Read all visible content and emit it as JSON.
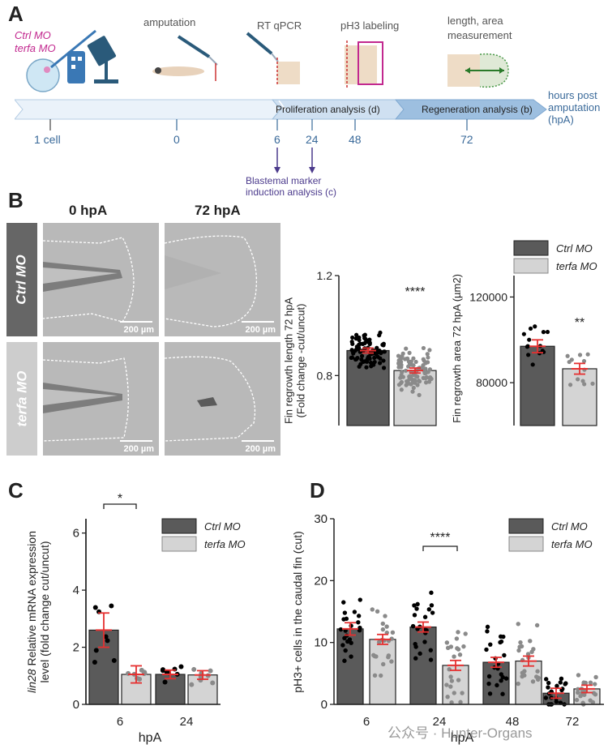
{
  "panel_labels": {
    "a": "A",
    "b": "B",
    "c": "C",
    "d": "D"
  },
  "timeline": {
    "top_labels": [
      "amputation",
      "RT qPCR",
      "pH3 labeling",
      "length, area",
      "measurement"
    ],
    "mo_labels": [
      "Ctrl MO",
      "terfa MO"
    ],
    "bar_text": {
      "prolif": "Proliferation  analysis (d)",
      "regen": "Regeneration analysis (b)"
    },
    "axis_title": [
      "hours post",
      "amputation",
      "(hpA)"
    ],
    "ticks": [
      "1 cell",
      "0",
      "6",
      "24",
      "48",
      "72"
    ],
    "blastemal": [
      "Blastemal marker",
      "induction analysis (c)"
    ],
    "colors": {
      "bar": "#cfe2f3",
      "bar_dark": "#7fa8d1",
      "text": "#3a6a9a",
      "arrow": "#4b3a8c"
    }
  },
  "images": {
    "col_labels": [
      "0 hpA",
      "72 hpA"
    ],
    "row_labels": [
      "Ctrl MO",
      "terfa MO"
    ],
    "scale_bar": "200 µm"
  },
  "legend": {
    "ctrl": "Ctrl MO",
    "terfa": "terfa MO"
  },
  "colors": {
    "ctrl": "#5a5a5a",
    "terfa": "#d4d4d4",
    "dot_ctrl": "#000000",
    "dot_terfa": "#8a8a8a",
    "mean": "#e53030"
  },
  "chart_data": [
    {
      "id": "fin_length",
      "type": "bar",
      "categories": [
        "Ctrl MO",
        "terfa MO"
      ],
      "values": [
        0.9,
        0.82
      ],
      "sem": [
        0.01,
        0.01
      ],
      "ylabel": [
        "Fin regrowth length 72 hpA",
        "(Fold change -cut/uncut)"
      ],
      "yticks": [
        "0.8",
        "1.2"
      ],
      "ytick_values": [
        0.8,
        1.2
      ],
      "ylim": [
        0.6,
        1.2
      ],
      "significance": "****"
    },
    {
      "id": "fin_area",
      "type": "bar",
      "categories": [
        "Ctrl MO",
        "terfa MO"
      ],
      "values": [
        97000,
        86500
      ],
      "sem": [
        3000,
        2500
      ],
      "ylabel": [
        "Fin regrowth area 72 hpA (µm2)"
      ],
      "yticks": [
        "80000",
        "120000"
      ],
      "ytick_values": [
        80000,
        120000
      ],
      "ylim": [
        60000,
        130000
      ],
      "significance": "**"
    },
    {
      "id": "lin28",
      "type": "bar",
      "categories": [
        "6",
        "24"
      ],
      "series": [
        {
          "name": "Ctrl MO",
          "values": [
            2.6,
            1.05
          ],
          "sem": [
            0.6,
            0.15
          ]
        },
        {
          "name": "terfa MO",
          "values": [
            1.05,
            1.03
          ],
          "sem": [
            0.3,
            0.15
          ]
        }
      ],
      "ylabel": [
        "lin28 Relative mRNA expression",
        "level (fold change cut/uncut)"
      ],
      "xlabel": "hpA",
      "yticks": [
        "0",
        "2",
        "4",
        "6"
      ],
      "ytick_values": [
        0,
        2,
        4,
        6
      ],
      "ylim": [
        0,
        6.5
      ],
      "significance": "*"
    },
    {
      "id": "ph3",
      "type": "bar",
      "categories": [
        "6",
        "24",
        "48",
        "72"
      ],
      "series": [
        {
          "name": "Ctrl MO",
          "values": [
            12.2,
            12.5,
            6.8,
            1.8
          ],
          "sem": [
            1.0,
            0.8,
            0.8,
            0.8
          ]
        },
        {
          "name": "terfa MO",
          "values": [
            10.5,
            6.3,
            7.0,
            2.5
          ],
          "sem": [
            0.8,
            0.8,
            0.8,
            0.6
          ]
        }
      ],
      "ylabel": [
        "pH3+ cells in the caudal fin (cut)"
      ],
      "xlabel": "hpA",
      "yticks": [
        "0",
        "10",
        "20",
        "30"
      ],
      "ytick_values": [
        0,
        10,
        20,
        30
      ],
      "ylim": [
        0,
        30
      ],
      "significance": "****"
    }
  ],
  "watermark": "公众号 · Hunter-Organs"
}
